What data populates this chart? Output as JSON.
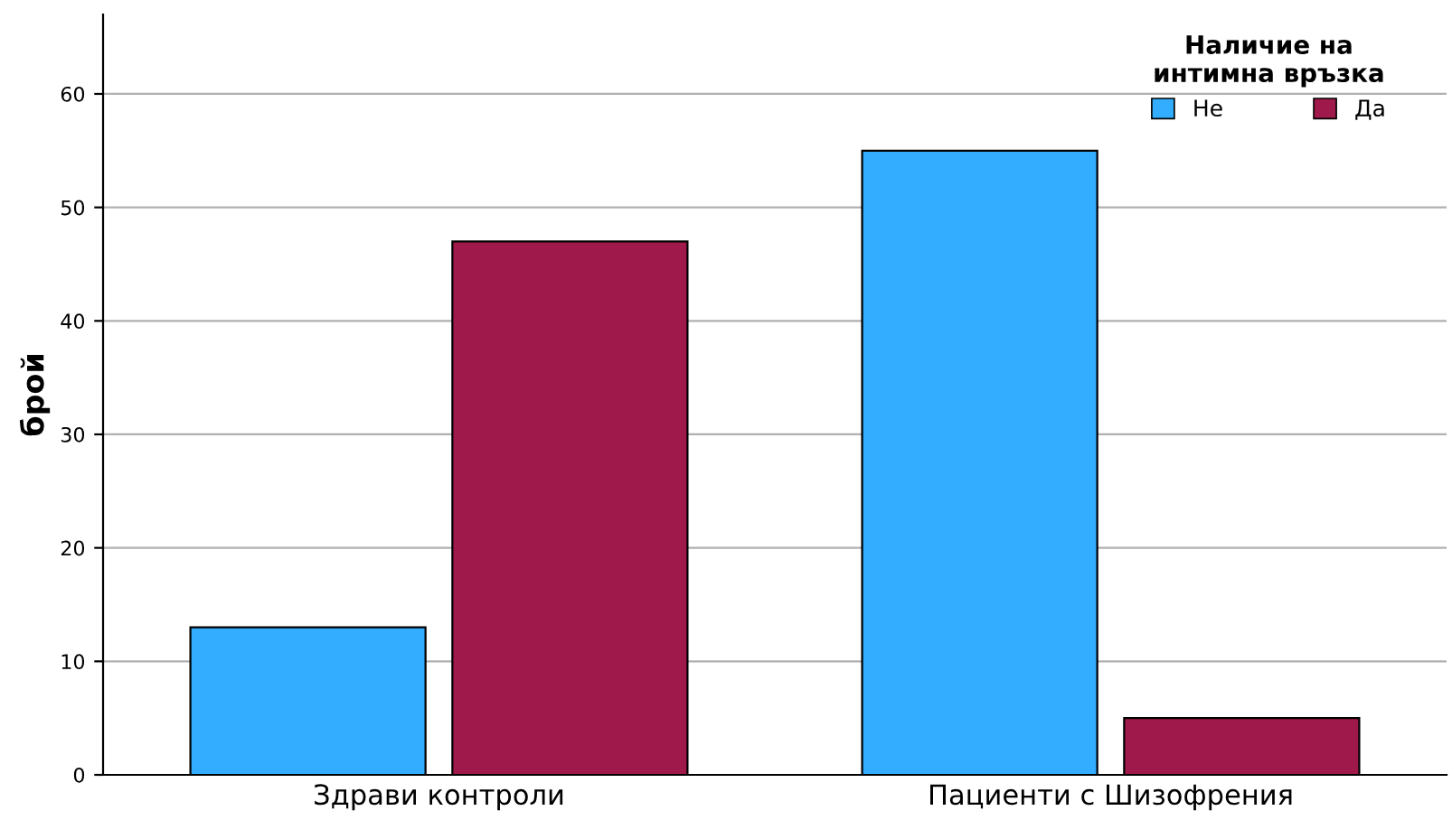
{
  "chart_data": {
    "type": "bar",
    "ylabel": "брой",
    "legend_title": "Наличие на\nинтимна връзка",
    "categories": [
      "Здрави контроли",
      "Пациенти с Шизофрения"
    ],
    "series": [
      {
        "name": "Не",
        "color": "#33adff",
        "values": [
          13,
          55
        ]
      },
      {
        "name": "Да",
        "color": "#a0194b",
        "values": [
          47,
          5
        ]
      }
    ],
    "ylim": [
      0,
      67
    ],
    "yticks": [
      0,
      10,
      20,
      30,
      40,
      50,
      60
    ],
    "grid": "y",
    "legend": "top right"
  }
}
